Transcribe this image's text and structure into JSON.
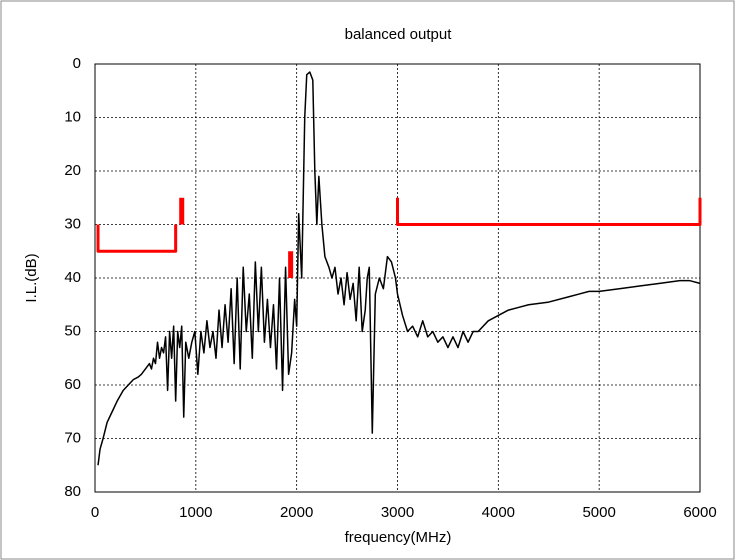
{
  "chart_data": {
    "type": "line",
    "title": "balanced output",
    "x_label": "frequency(MHz)",
    "y_label": "I.L.(dB)",
    "xlim": [
      0,
      6000
    ],
    "xticks": [
      0,
      1000,
      2000,
      3000,
      4000,
      5000,
      6000
    ],
    "ylim": [
      0,
      80
    ],
    "yticks": [
      0,
      10,
      20,
      30,
      40,
      50,
      60,
      70,
      80
    ],
    "y_reversed": true,
    "grid": true,
    "series": [
      {
        "color": "#000000",
        "line_width": 1.5,
        "x": [
          30,
          50,
          80,
          120,
          170,
          220,
          280,
          330,
          380,
          430,
          460,
          500,
          540,
          560,
          580,
          600,
          620,
          640,
          660,
          680,
          700,
          720,
          740,
          760,
          780,
          800,
          820,
          840,
          860,
          880,
          900,
          930,
          960,
          990,
          1020,
          1050,
          1080,
          1110,
          1140,
          1170,
          1200,
          1230,
          1260,
          1290,
          1320,
          1350,
          1380,
          1410,
          1440,
          1470,
          1500,
          1530,
          1560,
          1590,
          1620,
          1650,
          1680,
          1710,
          1740,
          1770,
          1800,
          1830,
          1860,
          1890,
          1920,
          1950,
          1980,
          2000,
          2020,
          2050,
          2080,
          2100,
          2130,
          2160,
          2180,
          2200,
          2220,
          2250,
          2280,
          2320,
          2350,
          2380,
          2410,
          2440,
          2470,
          2500,
          2530,
          2560,
          2590,
          2620,
          2650,
          2680,
          2700,
          2720,
          2750,
          2780,
          2820,
          2860,
          2900,
          2940,
          2980,
          3000,
          3050,
          3100,
          3150,
          3200,
          3250,
          3300,
          3350,
          3400,
          3450,
          3500,
          3550,
          3600,
          3650,
          3700,
          3750,
          3800,
          3900,
          4000,
          4100,
          4200,
          4300,
          4500,
          4700,
          4800,
          4900,
          5000,
          5200,
          5400,
          5600,
          5800,
          5900,
          6000
        ],
        "values": [
          75,
          72,
          70,
          67,
          65,
          63,
          61,
          60,
          59,
          58.5,
          58,
          57,
          56,
          57,
          55,
          56,
          52,
          55,
          53,
          54,
          51,
          61,
          50,
          55,
          49,
          63,
          50,
          53,
          49,
          66,
          52,
          55,
          52,
          50,
          58,
          50,
          54,
          48,
          53,
          50,
          55,
          46,
          53,
          45,
          52,
          42,
          56,
          40,
          57,
          38,
          50,
          43,
          55,
          37,
          50,
          38,
          52,
          44,
          53,
          45,
          57,
          40,
          61,
          38,
          58,
          54,
          44,
          49,
          28,
          40,
          10,
          2,
          1.5,
          3,
          20,
          30,
          21,
          30,
          36,
          38,
          40,
          38,
          43,
          40,
          45,
          39,
          44,
          41,
          48,
          38,
          50,
          46,
          40,
          38,
          69,
          43,
          40,
          42,
          36,
          37,
          40,
          43,
          47,
          50,
          49,
          51,
          48,
          51,
          50,
          52,
          51,
          53,
          51,
          53,
          50,
          52,
          50,
          50,
          48,
          47,
          46,
          45.5,
          45,
          44.5,
          43.5,
          43,
          42.5,
          42.5,
          42,
          41.5,
          41,
          40.5,
          40.5,
          41
        ]
      },
      {
        "color": "#ff0000",
        "line_width": 3,
        "x": [
          30,
          30,
          800,
          800
        ],
        "values": [
          30,
          35,
          35,
          30
        ]
      },
      {
        "color": "#ff0000",
        "line_width": 5,
        "x": [
          860,
          860
        ],
        "values": [
          25,
          30
        ]
      },
      {
        "color": "#ff0000",
        "line_width": 5,
        "x": [
          1940,
          1940
        ],
        "values": [
          35,
          40
        ]
      },
      {
        "color": "#ff0000",
        "line_width": 3,
        "x": [
          3000,
          3000,
          6000,
          6000
        ],
        "values": [
          25,
          30,
          30,
          25
        ]
      }
    ]
  }
}
